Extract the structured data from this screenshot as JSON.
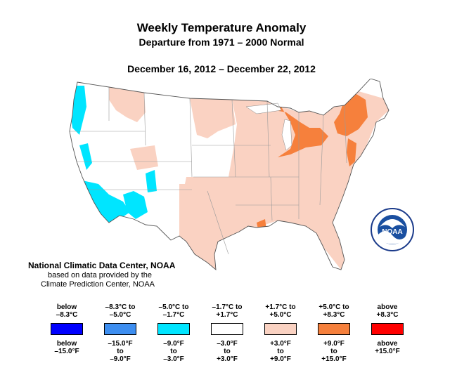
{
  "title": "Weekly Temperature Anomaly",
  "subtitle": "Departure from 1971 – 2000 Normal",
  "date_range": "December 16, 2012 – December 22, 2012",
  "credits": {
    "line1": "National Climatic Data Center, NOAA",
    "line2": "based on data provided by the",
    "line3": "Climate Prediction Center, NOAA"
  },
  "logo": {
    "text": "NOAA",
    "icon": "noaa-seal-icon"
  },
  "colors": {
    "below_neg_8_3": "#0000ff",
    "neg_8_3_to_neg_5": "#3d8ef0",
    "neg_5_to_neg_1_7": "#00e5ff",
    "neg_1_7_to_1_7": "#ffffff",
    "pos_1_7_to_5": "#fad2c2",
    "pos_5_to_8_3": "#f6803c",
    "above_8_3": "#ff0000"
  },
  "legend": [
    {
      "c": "below\n–8.3°C",
      "f": "below\n–15.0°F",
      "color": "#0000ff"
    },
    {
      "c": "–8.3°C to\n–5.0°C",
      "f": "–15.0°F\nto\n–9.0°F",
      "color": "#3d8ef0"
    },
    {
      "c": "–5.0°C to\n–1.7°C",
      "f": "–9.0°F\nto\n–3.0°F",
      "color": "#00e5ff"
    },
    {
      "c": "–1.7°C to\n+1.7°C",
      "f": "–3.0°F\nto\n+3.0°F",
      "color": "#ffffff"
    },
    {
      "c": "+1.7°C to\n+5.0°C",
      "f": "+3.0°F\nto\n+9.0°F",
      "color": "#fad2c2"
    },
    {
      "c": "+5.0°C to\n+8.3°C",
      "f": "+9.0°F\nto\n+15.0°F",
      "color": "#f6803c"
    },
    {
      "c": "above\n+8.3°C",
      "f": "above\n+15.0°F",
      "color": "#ff0000"
    }
  ]
}
